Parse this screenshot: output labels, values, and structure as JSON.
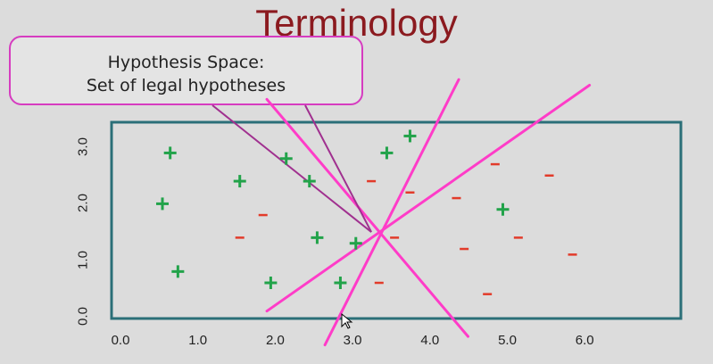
{
  "slide": {
    "title": "Terminology",
    "callout": {
      "line1": "Hypothesis Space:",
      "line2": "Set of legal hypotheses"
    }
  },
  "colors": {
    "title": "#8b1a1f",
    "callout_border": "#d63cc0",
    "plot_border": "#2b6f78",
    "positive": "#22a34a",
    "negative": "#e23b2a",
    "hypothesis_line": "#ff3cc8",
    "pointer_line": "#a0308f"
  },
  "chart_data": {
    "type": "scatter",
    "title": "",
    "xlabel": "",
    "ylabel": "",
    "xlim": [
      0.0,
      7.2
    ],
    "ylim": [
      0.0,
      3.5
    ],
    "xticks": [
      "0.0",
      "1.0",
      "2.0",
      "3.0",
      "4.0",
      "5.0",
      "6.0"
    ],
    "yticks": [
      "0.0",
      "1.0",
      "2.0",
      "3.0"
    ],
    "positive_points": [
      {
        "x": 0.7,
        "y": 2.9
      },
      {
        "x": 1.6,
        "y": 2.4
      },
      {
        "x": 2.2,
        "y": 2.8
      },
      {
        "x": 2.5,
        "y": 2.4
      },
      {
        "x": 0.6,
        "y": 2.0
      },
      {
        "x": 0.8,
        "y": 0.8
      },
      {
        "x": 2.0,
        "y": 0.6
      },
      {
        "x": 2.6,
        "y": 1.4
      },
      {
        "x": 2.9,
        "y": 0.6
      },
      {
        "x": 3.1,
        "y": 1.3
      },
      {
        "x": 3.5,
        "y": 2.9
      },
      {
        "x": 3.8,
        "y": 3.2
      },
      {
        "x": 5.0,
        "y": 1.9
      }
    ],
    "negative_points": [
      {
        "x": 1.9,
        "y": 1.8
      },
      {
        "x": 1.6,
        "y": 1.4
      },
      {
        "x": 3.3,
        "y": 2.4
      },
      {
        "x": 3.8,
        "y": 2.2
      },
      {
        "x": 3.6,
        "y": 1.4
      },
      {
        "x": 3.4,
        "y": 0.6
      },
      {
        "x": 4.4,
        "y": 2.1
      },
      {
        "x": 4.9,
        "y": 2.7
      },
      {
        "x": 5.6,
        "y": 2.5
      },
      {
        "x": 4.5,
        "y": 1.2
      },
      {
        "x": 5.2,
        "y": 1.4
      },
      {
        "x": 5.9,
        "y": 1.1
      },
      {
        "x": 4.8,
        "y": 0.4
      }
    ],
    "hypothesis_lines": [
      {
        "x1": 1.95,
        "y1": 3.85,
        "x2": 4.55,
        "y2": -0.35
      },
      {
        "x1": 4.43,
        "y1": 4.2,
        "x2": 2.7,
        "y2": -0.5
      },
      {
        "x1": 6.12,
        "y1": 4.1,
        "x2": 1.95,
        "y2": 0.1
      }
    ]
  }
}
